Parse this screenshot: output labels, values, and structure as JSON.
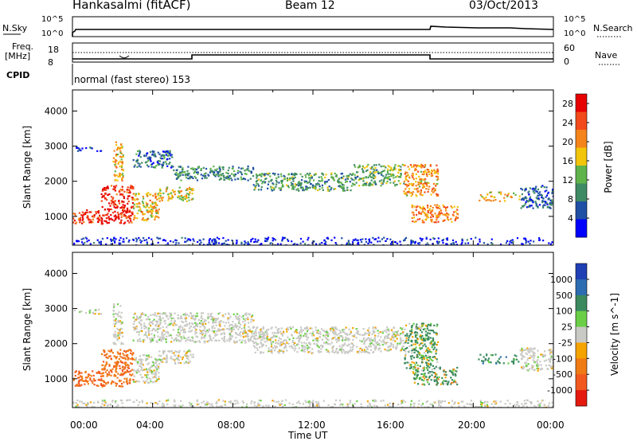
{
  "header": {
    "station": "Hankasalmi (fitACF)",
    "beam": "Beam 12",
    "date": "03/Oct/2013"
  },
  "strip": {
    "nsky_label": "N.Sky",
    "nsky_top_tick": "10^5",
    "nsky_bottom_tick": "10^0",
    "nsearch_label": "N.Search",
    "nsearch_top_tick": "10^5",
    "nsearch_bottom_tick": "10^0",
    "freq_label_1": "Freq.",
    "freq_label_2": "[MHz]",
    "freq_top_tick": "18",
    "freq_bottom_tick": "8",
    "nave_label": "Nave",
    "nave_top_tick": "60",
    "nave_bottom_tick": "0",
    "cpid_label": "CPID",
    "cpid_value": "normal (fast stereo) 153"
  },
  "xaxis": {
    "label": "Time UT",
    "ticks": [
      "00:00",
      "04:00",
      "08:00",
      "12:00",
      "16:00",
      "20:00",
      "00:00"
    ]
  },
  "chart_data": [
    {
      "type": "heatmap",
      "panel": "power",
      "ylabel": "Slant Range [km]",
      "yticks": [
        "1000",
        "2000",
        "3000",
        "4000"
      ],
      "ylim": [
        180,
        4600
      ],
      "xlim_hours": [
        0,
        24
      ],
      "colorbar_label": "Power [dB]",
      "colorbar_ticks": [
        "4",
        "8",
        "12",
        "16",
        "20",
        "24",
        "28"
      ],
      "colorbar_range": [
        0,
        30
      ],
      "colors": [
        "#0000ff",
        "#204fa6",
        "#3e8a64",
        "#5fb34a",
        "#f2c40a",
        "#f5851a",
        "#f24a1a",
        "#e60000"
      ],
      "regions": [
        {
          "t0": 0.0,
          "t1": 1.4,
          "r0": 820,
          "r1": 1200,
          "level": 0.85
        },
        {
          "t0": 1.4,
          "t1": 3.0,
          "r0": 800,
          "r1": 1900,
          "level": 0.9
        },
        {
          "t0": 3.0,
          "t1": 4.3,
          "r0": 900,
          "r1": 1700,
          "level": 0.6
        },
        {
          "t0": 4.3,
          "t1": 6.0,
          "r0": 1450,
          "r1": 1850,
          "level": 0.55
        },
        {
          "t0": 0.0,
          "t1": 1.5,
          "r0": 2850,
          "r1": 3000,
          "level": 0.15
        },
        {
          "t0": 2.0,
          "t1": 2.5,
          "r0": 2000,
          "r1": 3150,
          "level": 0.6
        },
        {
          "t0": 3.0,
          "t1": 5.0,
          "r0": 2400,
          "r1": 2900,
          "level": 0.25
        },
        {
          "t0": 5.0,
          "t1": 9.0,
          "r0": 2050,
          "r1": 2450,
          "level": 0.3
        },
        {
          "t0": 9.0,
          "t1": 14.0,
          "r0": 1750,
          "r1": 2250,
          "level": 0.35
        },
        {
          "t0": 14.0,
          "t1": 16.5,
          "r0": 1900,
          "r1": 2500,
          "level": 0.4
        },
        {
          "t0": 16.5,
          "t1": 18.2,
          "r0": 1600,
          "r1": 2500,
          "level": 0.65
        },
        {
          "t0": 16.9,
          "t1": 19.2,
          "r0": 850,
          "r1": 1350,
          "level": 0.7
        },
        {
          "t0": 20.2,
          "t1": 22.3,
          "r0": 1450,
          "r1": 1720,
          "level": 0.6
        },
        {
          "t0": 22.3,
          "t1": 24.0,
          "r0": 1250,
          "r1": 1900,
          "level": 0.2
        },
        {
          "t0": 0.0,
          "t1": 24.0,
          "r0": 200,
          "r1": 420,
          "level": 0.1
        }
      ]
    },
    {
      "type": "heatmap",
      "panel": "velocity",
      "ylabel": "Slant Range [km]",
      "yticks": [
        "1000",
        "2000",
        "3000",
        "4000"
      ],
      "ylim": [
        180,
        4600
      ],
      "xlim_hours": [
        0,
        24
      ],
      "colorbar_label": "Velocity [m s^-1]",
      "colorbar_ticks": [
        "1000",
        "500",
        "100",
        "25",
        "-25",
        "-100",
        "-500",
        "-1000"
      ],
      "colorbar_range": [
        -1000,
        1000
      ],
      "colors": [
        "#1f3fb5",
        "#2c6cb2",
        "#3b8a5e",
        "#6acf46",
        "#c9c9c5",
        "#f5a300",
        "#f07a14",
        "#f2591e",
        "#e41a0f"
      ],
      "regions": [
        {
          "t0": 0.0,
          "t1": 1.4,
          "r0": 820,
          "r1": 1250,
          "vel": -300
        },
        {
          "t0": 1.4,
          "t1": 3.0,
          "r0": 800,
          "r1": 1850,
          "vel": -250
        },
        {
          "t0": 3.0,
          "t1": 4.3,
          "r0": 900,
          "r1": 1700,
          "vel": 0
        },
        {
          "t0": 4.3,
          "t1": 6.0,
          "r0": 1450,
          "r1": 1850,
          "vel": 0
        },
        {
          "t0": 0.0,
          "t1": 1.5,
          "r0": 2850,
          "r1": 3000,
          "vel": 0
        },
        {
          "t0": 2.0,
          "t1": 2.5,
          "r0": 2000,
          "r1": 3150,
          "vel": 0
        },
        {
          "t0": 3.0,
          "t1": 9.0,
          "r0": 2050,
          "r1": 2900,
          "vel": 0
        },
        {
          "t0": 9.0,
          "t1": 16.5,
          "r0": 1750,
          "r1": 2500,
          "vel": 0
        },
        {
          "t0": 16.5,
          "t1": 18.2,
          "r0": 1300,
          "r1": 2600,
          "vel": 120
        },
        {
          "t0": 16.9,
          "t1": 19.2,
          "r0": 850,
          "r1": 1350,
          "vel": 80
        },
        {
          "t0": 20.2,
          "t1": 22.3,
          "r0": 1450,
          "r1": 1720,
          "vel": 200
        },
        {
          "t0": 22.3,
          "t1": 24.0,
          "r0": 1250,
          "r1": 1900,
          "vel": 0
        },
        {
          "t0": 0.0,
          "t1": 24.0,
          "r0": 200,
          "r1": 420,
          "vel": 0
        }
      ]
    }
  ]
}
